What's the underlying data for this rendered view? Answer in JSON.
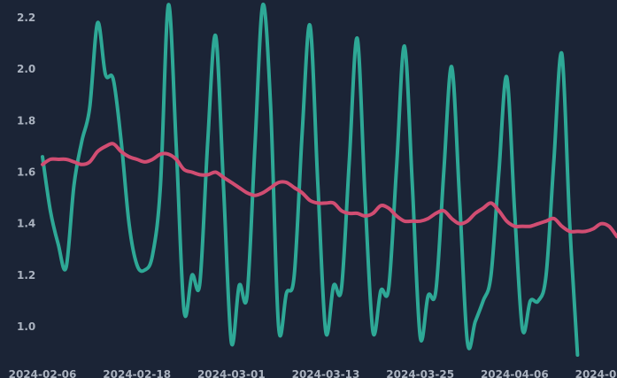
{
  "chart_data": {
    "type": "line",
    "title": "",
    "xlabel": "",
    "ylabel": "",
    "grid": false,
    "legend": "none",
    "ylim": [
      0.85,
      2.25
    ],
    "xlim": [
      "2024-02-06",
      "2024-04-18"
    ],
    "y_ticks": [
      "1.0",
      "1.2",
      "1.4",
      "1.6",
      "1.8",
      "2.0",
      "2.2"
    ],
    "x_ticks": [
      "2024-02-06",
      "2024-02-18",
      "2024-03-01",
      "2024-03-13",
      "2024-03-25",
      "2024-04-06",
      "2024-04-18"
    ],
    "colors": {
      "background": "#1b2436",
      "tick_text": "#aab2bf"
    },
    "series": [
      {
        "color": "#2ea896",
        "points": [
          [
            "2024-02-06",
            1.66
          ],
          [
            "2024-02-07",
            1.45
          ],
          [
            "2024-02-08",
            1.32
          ],
          [
            "2024-02-09",
            1.23
          ],
          [
            "2024-02-10",
            1.55
          ],
          [
            "2024-02-11",
            1.72
          ],
          [
            "2024-02-12",
            1.85
          ],
          [
            "2024-02-13",
            2.18
          ],
          [
            "2024-02-14",
            1.98
          ],
          [
            "2024-02-15",
            1.96
          ],
          [
            "2024-02-16",
            1.72
          ],
          [
            "2024-02-17",
            1.4
          ],
          [
            "2024-02-18",
            1.24
          ],
          [
            "2024-02-19",
            1.22
          ],
          [
            "2024-02-20",
            1.28
          ],
          [
            "2024-02-21",
            1.55
          ],
          [
            "2024-02-22",
            2.25
          ],
          [
            "2024-02-23",
            1.7
          ],
          [
            "2024-02-24",
            1.06
          ],
          [
            "2024-02-25",
            1.2
          ],
          [
            "2024-02-26",
            1.17
          ],
          [
            "2024-02-27",
            1.72
          ],
          [
            "2024-02-28",
            2.13
          ],
          [
            "2024-02-29",
            1.55
          ],
          [
            "2024-03-01",
            0.94
          ],
          [
            "2024-03-02",
            1.16
          ],
          [
            "2024-03-03",
            1.12
          ],
          [
            "2024-03-04",
            1.7
          ],
          [
            "2024-03-05",
            2.25
          ],
          [
            "2024-03-06",
            1.85
          ],
          [
            "2024-03-07",
            1.0
          ],
          [
            "2024-03-08",
            1.13
          ],
          [
            "2024-03-09",
            1.2
          ],
          [
            "2024-03-10",
            1.75
          ],
          [
            "2024-03-11",
            2.17
          ],
          [
            "2024-03-12",
            1.55
          ],
          [
            "2024-03-13",
            0.98
          ],
          [
            "2024-03-14",
            1.16
          ],
          [
            "2024-03-15",
            1.15
          ],
          [
            "2024-03-16",
            1.65
          ],
          [
            "2024-03-17",
            2.12
          ],
          [
            "2024-03-18",
            1.5
          ],
          [
            "2024-03-19",
            0.98
          ],
          [
            "2024-03-20",
            1.14
          ],
          [
            "2024-03-21",
            1.15
          ],
          [
            "2024-03-22",
            1.62
          ],
          [
            "2024-03-23",
            2.09
          ],
          [
            "2024-03-24",
            1.55
          ],
          [
            "2024-03-25",
            0.96
          ],
          [
            "2024-03-26",
            1.12
          ],
          [
            "2024-03-27",
            1.14
          ],
          [
            "2024-03-28",
            1.6
          ],
          [
            "2024-03-29",
            2.01
          ],
          [
            "2024-03-30",
            1.5
          ],
          [
            "2024-03-31",
            0.94
          ],
          [
            "2024-04-01",
            1.02
          ],
          [
            "2024-04-02",
            1.1
          ],
          [
            "2024-04-03",
            1.2
          ],
          [
            "2024-04-04",
            1.6
          ],
          [
            "2024-04-05",
            1.97
          ],
          [
            "2024-04-06",
            1.45
          ],
          [
            "2024-04-07",
            0.99
          ],
          [
            "2024-04-08",
            1.1
          ],
          [
            "2024-04-09",
            1.1
          ],
          [
            "2024-04-10",
            1.2
          ],
          [
            "2024-04-11",
            1.65
          ],
          [
            "2024-04-12",
            2.06
          ],
          [
            "2024-04-13",
            1.4
          ],
          [
            "2024-04-14",
            0.89
          ]
        ]
      },
      {
        "color": "#d14d72",
        "points": [
          [
            "2024-02-06",
            1.63
          ],
          [
            "2024-02-07",
            1.65
          ],
          [
            "2024-02-08",
            1.65
          ],
          [
            "2024-02-09",
            1.65
          ],
          [
            "2024-02-10",
            1.64
          ],
          [
            "2024-02-11",
            1.63
          ],
          [
            "2024-02-12",
            1.64
          ],
          [
            "2024-02-13",
            1.68
          ],
          [
            "2024-02-14",
            1.7
          ],
          [
            "2024-02-15",
            1.71
          ],
          [
            "2024-02-16",
            1.68
          ],
          [
            "2024-02-17",
            1.66
          ],
          [
            "2024-02-18",
            1.65
          ],
          [
            "2024-02-19",
            1.64
          ],
          [
            "2024-02-20",
            1.65
          ],
          [
            "2024-02-21",
            1.67
          ],
          [
            "2024-02-22",
            1.67
          ],
          [
            "2024-02-23",
            1.65
          ],
          [
            "2024-02-24",
            1.61
          ],
          [
            "2024-02-25",
            1.6
          ],
          [
            "2024-02-26",
            1.59
          ],
          [
            "2024-02-27",
            1.59
          ],
          [
            "2024-02-28",
            1.6
          ],
          [
            "2024-02-29",
            1.58
          ],
          [
            "2024-03-01",
            1.56
          ],
          [
            "2024-03-02",
            1.54
          ],
          [
            "2024-03-03",
            1.52
          ],
          [
            "2024-03-04",
            1.51
          ],
          [
            "2024-03-05",
            1.52
          ],
          [
            "2024-03-06",
            1.54
          ],
          [
            "2024-03-07",
            1.56
          ],
          [
            "2024-03-08",
            1.56
          ],
          [
            "2024-03-09",
            1.54
          ],
          [
            "2024-03-10",
            1.52
          ],
          [
            "2024-03-11",
            1.49
          ],
          [
            "2024-03-12",
            1.48
          ],
          [
            "2024-03-13",
            1.48
          ],
          [
            "2024-03-14",
            1.48
          ],
          [
            "2024-03-15",
            1.45
          ],
          [
            "2024-03-16",
            1.44
          ],
          [
            "2024-03-17",
            1.44
          ],
          [
            "2024-03-18",
            1.43
          ],
          [
            "2024-03-19",
            1.44
          ],
          [
            "2024-03-20",
            1.47
          ],
          [
            "2024-03-21",
            1.46
          ],
          [
            "2024-03-22",
            1.43
          ],
          [
            "2024-03-23",
            1.41
          ],
          [
            "2024-03-24",
            1.41
          ],
          [
            "2024-03-25",
            1.41
          ],
          [
            "2024-03-26",
            1.42
          ],
          [
            "2024-03-27",
            1.44
          ],
          [
            "2024-03-28",
            1.45
          ],
          [
            "2024-03-29",
            1.42
          ],
          [
            "2024-03-30",
            1.4
          ],
          [
            "2024-03-31",
            1.41
          ],
          [
            "2024-04-01",
            1.44
          ],
          [
            "2024-04-02",
            1.46
          ],
          [
            "2024-04-03",
            1.48
          ],
          [
            "2024-04-04",
            1.45
          ],
          [
            "2024-04-05",
            1.41
          ],
          [
            "2024-04-06",
            1.39
          ],
          [
            "2024-04-07",
            1.39
          ],
          [
            "2024-04-08",
            1.39
          ],
          [
            "2024-04-09",
            1.4
          ],
          [
            "2024-04-10",
            1.41
          ],
          [
            "2024-04-11",
            1.42
          ],
          [
            "2024-04-12",
            1.39
          ],
          [
            "2024-04-13",
            1.37
          ],
          [
            "2024-04-14",
            1.37
          ],
          [
            "2024-04-15",
            1.37
          ],
          [
            "2024-04-16",
            1.38
          ],
          [
            "2024-04-17",
            1.4
          ],
          [
            "2024-04-18",
            1.39
          ],
          [
            "2024-04-19",
            1.35
          ]
        ]
      }
    ]
  }
}
